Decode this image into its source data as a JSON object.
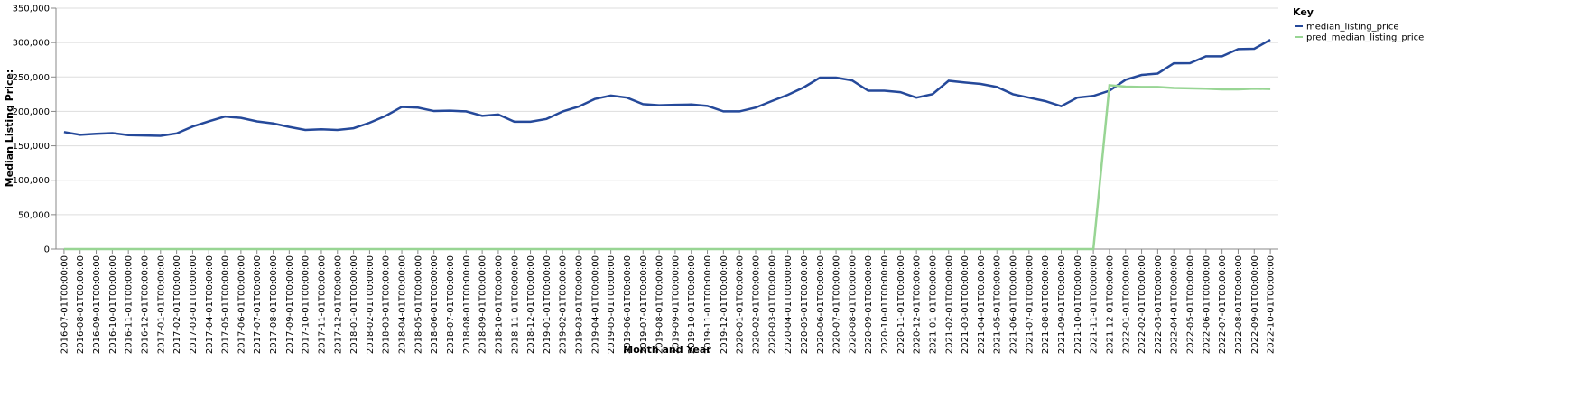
{
  "chart_data": {
    "type": "line",
    "x_label": "Month and Year",
    "y_label": "Median Listing Price:",
    "legend_title": "Key",
    "legend_position": "right",
    "grid": true,
    "categories": [
      "2016-07-01T00:00:00",
      "2016-08-01T00:00:00",
      "2016-09-01T00:00:00",
      "2016-10-01T00:00:00",
      "2016-11-01T00:00:00",
      "2016-12-01T00:00:00",
      "2017-01-01T00:00:00",
      "2017-02-01T00:00:00",
      "2017-03-01T00:00:00",
      "2017-04-01T00:00:00",
      "2017-05-01T00:00:00",
      "2017-06-01T00:00:00",
      "2017-07-01T00:00:00",
      "2017-08-01T00:00:00",
      "2017-09-01T00:00:00",
      "2017-10-01T00:00:00",
      "2017-11-01T00:00:00",
      "2017-12-01T00:00:00",
      "2018-01-01T00:00:00",
      "2018-02-01T00:00:00",
      "2018-03-01T00:00:00",
      "2018-04-01T00:00:00",
      "2018-05-01T00:00:00",
      "2018-06-01T00:00:00",
      "2018-07-01T00:00:00",
      "2018-08-01T00:00:00",
      "2018-09-01T00:00:00",
      "2018-10-01T00:00:00",
      "2018-11-01T00:00:00",
      "2018-12-01T00:00:00",
      "2019-01-01T00:00:00",
      "2019-02-01T00:00:00",
      "2019-03-01T00:00:00",
      "2019-04-01T00:00:00",
      "2019-05-01T00:00:00",
      "2019-06-01T00:00:00",
      "2019-07-01T00:00:00",
      "2019-08-01T00:00:00",
      "2019-09-01T00:00:00",
      "2019-10-01T00:00:00",
      "2019-11-01T00:00:00",
      "2019-12-01T00:00:00",
      "2020-01-01T00:00:00",
      "2020-02-01T00:00:00",
      "2020-03-01T00:00:00",
      "2020-04-01T00:00:00",
      "2020-05-01T00:00:00",
      "2020-06-01T00:00:00",
      "2020-07-01T00:00:00",
      "2020-08-01T00:00:00",
      "2020-09-01T00:00:00",
      "2020-10-01T00:00:00",
      "2020-11-01T00:00:00",
      "2020-12-01T00:00:00",
      "2021-01-01T00:00:00",
      "2021-02-01T00:00:00",
      "2021-03-01T00:00:00",
      "2021-04-01T00:00:00",
      "2021-05-01T00:00:00",
      "2021-06-01T00:00:00",
      "2021-07-01T00:00:00",
      "2021-08-01T00:00:00",
      "2021-09-01T00:00:00",
      "2021-10-01T00:00:00",
      "2021-11-01T00:00:00",
      "2021-12-01T00:00:00",
      "2022-01-01T00:00:00",
      "2022-02-01T00:00:00",
      "2022-03-01T00:00:00",
      "2022-04-01T00:00:00",
      "2022-05-01T00:00:00",
      "2022-06-01T00:00:00",
      "2022-07-01T00:00:00",
      "2022-08-01T00:00:00",
      "2022-09-01T00:00:00",
      "2022-10-01T00:00:00"
    ],
    "series": [
      {
        "name": "median_listing_price",
        "color": "#25499a",
        "values": [
          170000,
          166000,
          167500,
          168500,
          165500,
          165000,
          164500,
          168000,
          178000,
          185500,
          192500,
          190500,
          185500,
          182500,
          177500,
          173000,
          174000,
          173000,
          175500,
          183500,
          193500,
          206500,
          205500,
          200500,
          201000,
          200000,
          193500,
          195500,
          185000,
          185000,
          189000,
          199900,
          207000,
          218000,
          223000,
          220000,
          210500,
          209000,
          209500,
          210000,
          208000,
          200000,
          200000,
          205500,
          215000,
          224000,
          235000,
          249000,
          249000,
          245000,
          230000,
          230000,
          228000,
          220000,
          225000,
          244500,
          242000,
          239900,
          235500,
          224900,
          220000,
          215000,
          207500,
          220000,
          222500,
          230000,
          245900,
          253000,
          255000,
          269900,
          270000,
          280000,
          280000,
          290500,
          291000,
          304000
        ]
      },
      {
        "name": "pred_median_listing_price",
        "color": "#98d594",
        "values": [
          0,
          0,
          0,
          0,
          0,
          0,
          0,
          0,
          0,
          0,
          0,
          0,
          0,
          0,
          0,
          0,
          0,
          0,
          0,
          0,
          0,
          0,
          0,
          0,
          0,
          0,
          0,
          0,
          0,
          0,
          0,
          0,
          0,
          0,
          0,
          0,
          0,
          0,
          0,
          0,
          0,
          0,
          0,
          0,
          0,
          0,
          0,
          0,
          0,
          0,
          0,
          0,
          0,
          0,
          0,
          0,
          0,
          0,
          0,
          0,
          0,
          0,
          0,
          0,
          0,
          238000,
          236000,
          235500,
          235500,
          234000,
          233500,
          233000,
          232000,
          232000,
          233000,
          232500
        ]
      }
    ],
    "ylim": [
      0,
      350000
    ],
    "yticks": [
      0,
      {
        "value": 50000,
        "label": "50,000"
      },
      {
        "value": 100000,
        "label": "100,000"
      },
      {
        "value": 150000,
        "label": "150,000"
      },
      {
        "value": 200000,
        "label": "200,000"
      },
      {
        "value": 250000,
        "label": "250,000"
      },
      {
        "value": 300000,
        "label": "300,000"
      },
      {
        "value": 350000,
        "label": "350,000"
      }
    ]
  }
}
